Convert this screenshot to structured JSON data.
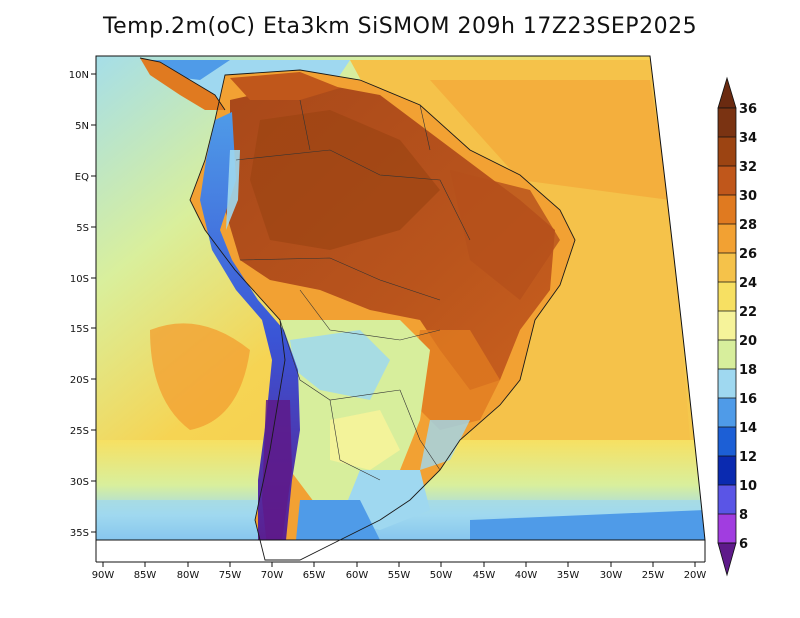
{
  "title": "Temp.2m(oC) Eta3km SiSMOM 209h 17Z23SEP2025",
  "map": {
    "variable": "2 m air temperature",
    "units": "oC",
    "region": "South America"
  },
  "axes": {
    "lat_labels": [
      "10N",
      "5N",
      "EQ",
      "5S",
      "10S",
      "15S",
      "20S",
      "25S",
      "30S",
      "35S"
    ],
    "lat_values": [
      10,
      5,
      0,
      -5,
      -10,
      -15,
      -20,
      -25,
      -30,
      -35
    ],
    "lon_labels": [
      "90W",
      "85W",
      "80W",
      "75W",
      "70W",
      "65W",
      "60W",
      "55W",
      "50W",
      "45W",
      "40W",
      "35W",
      "30W",
      "25W",
      "20W"
    ],
    "lon_values": [
      -90,
      -85,
      -80,
      -75,
      -70,
      -65,
      -60,
      -55,
      -50,
      -45,
      -40,
      -35,
      -30,
      -25,
      -20
    ]
  },
  "colorbar": {
    "labels": [
      "36",
      "34",
      "32",
      "30",
      "28",
      "26",
      "24",
      "22",
      "20",
      "18",
      "16",
      "14",
      "12",
      "10",
      "8",
      "6"
    ],
    "colors_top_to_bottom": [
      "#7a3312",
      "#9c4412",
      "#c0571b",
      "#e07a20",
      "#f2a133",
      "#f5c24a",
      "#f7e062",
      "#f6f39a",
      "#d7ee9c",
      "#9fd8f0",
      "#4f9be8",
      "#1c5fd6",
      "#0a2ab0",
      "#5a55e6",
      "#a13de0",
      "#5e1a8a"
    ]
  }
}
